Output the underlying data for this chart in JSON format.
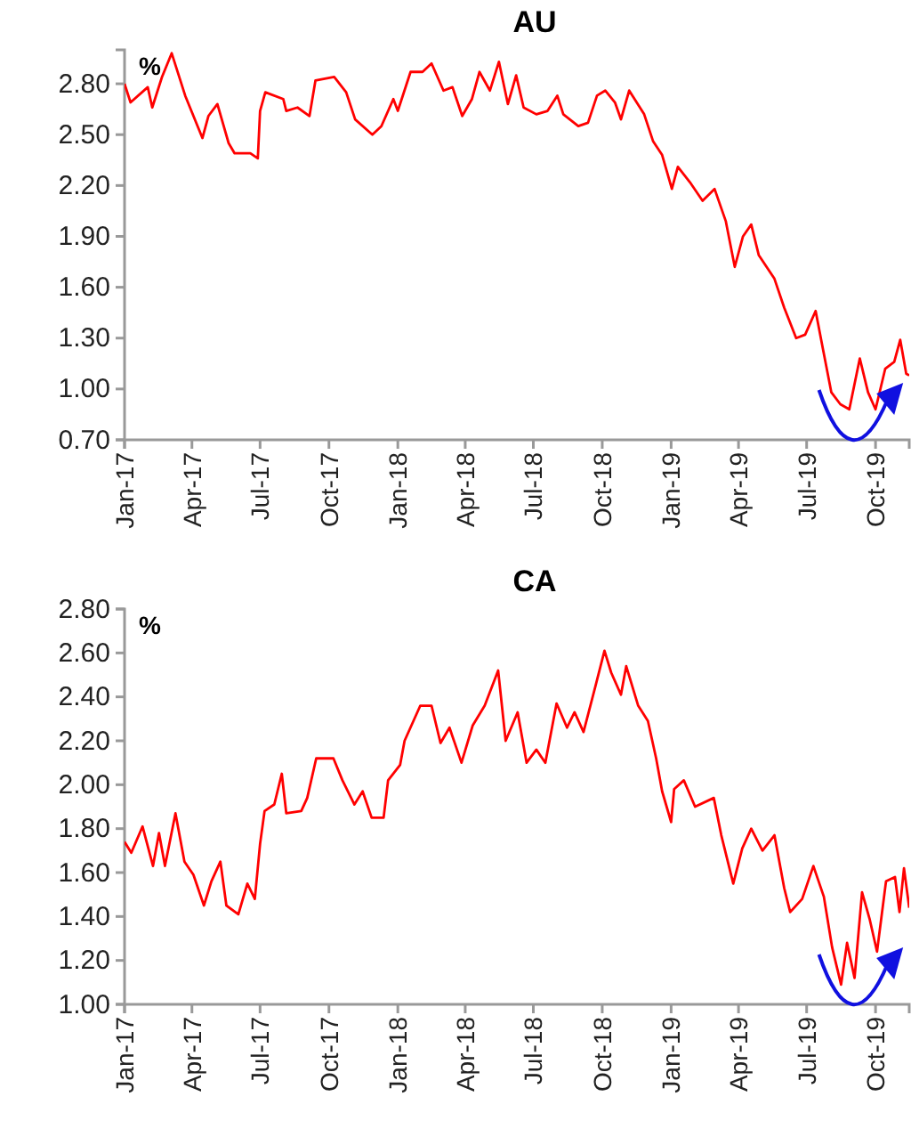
{
  "chart_data": [
    {
      "type": "line",
      "title": "AU",
      "ylabel": "%",
      "grid": false,
      "marker": "none",
      "line_style": "solid",
      "xlim": [
        "2017-01-01",
        "2019-11-15"
      ],
      "xticks": [
        {
          "value": "2017-01-01",
          "label": "Jan-17"
        },
        {
          "value": "2017-04-01",
          "label": "Apr-17"
        },
        {
          "value": "2017-07-01",
          "label": "Jul-17"
        },
        {
          "value": "2017-10-01",
          "label": "Oct-17"
        },
        {
          "value": "2018-01-01",
          "label": "Jan-18"
        },
        {
          "value": "2018-04-01",
          "label": "Apr-18"
        },
        {
          "value": "2018-07-01",
          "label": "Jul-18"
        },
        {
          "value": "2018-10-01",
          "label": "Oct-18"
        },
        {
          "value": "2019-01-01",
          "label": "Jan-19"
        },
        {
          "value": "2019-04-01",
          "label": "Apr-19"
        },
        {
          "value": "2019-07-01",
          "label": "Jul-19"
        },
        {
          "value": "2019-10-01",
          "label": "Oct-19"
        }
      ],
      "ylim": [
        0.7,
        3.0
      ],
      "yticks": [
        {
          "value": 0.7,
          "label": "0.70"
        },
        {
          "value": 1.0,
          "label": "1.00"
        },
        {
          "value": 1.3,
          "label": "1.30"
        },
        {
          "value": 1.6,
          "label": "1.60"
        },
        {
          "value": 1.9,
          "label": "1.90"
        },
        {
          "value": 2.2,
          "label": "2.20"
        },
        {
          "value": 2.5,
          "label": "2.50"
        },
        {
          "value": 2.8,
          "label": "2.80"
        }
      ],
      "x": [
        "2017-01-01",
        "2017-01-09",
        "2017-02-01",
        "2017-02-07",
        "2017-02-20",
        "2017-03-05",
        "2017-03-23",
        "2017-04-15",
        "2017-04-23",
        "2017-05-05",
        "2017-05-20",
        "2017-05-28",
        "2017-06-18",
        "2017-06-28",
        "2017-07-01",
        "2017-07-08",
        "2017-08-01",
        "2017-08-05",
        "2017-08-20",
        "2017-09-05",
        "2017-09-13",
        "2017-10-08",
        "2017-10-24",
        "2017-11-05",
        "2017-11-28",
        "2017-12-10",
        "2017-12-26",
        "2018-01-01",
        "2018-01-18",
        "2018-02-03",
        "2018-02-15",
        "2018-03-03",
        "2018-03-15",
        "2018-03-28",
        "2018-04-10",
        "2018-04-20",
        "2018-05-04",
        "2018-05-16",
        "2018-05-28",
        "2018-06-08",
        "2018-06-18",
        "2018-07-05",
        "2018-07-20",
        "2018-08-02",
        "2018-08-10",
        "2018-08-30",
        "2018-09-12",
        "2018-09-24",
        "2018-10-05",
        "2018-10-18",
        "2018-10-26",
        "2018-11-06",
        "2018-11-26",
        "2018-12-08",
        "2018-12-20",
        "2019-01-02",
        "2019-01-10",
        "2019-01-26",
        "2019-02-12",
        "2019-02-28",
        "2019-03-15",
        "2019-03-27",
        "2019-04-07",
        "2019-04-18",
        "2019-04-28",
        "2019-05-19",
        "2019-06-01",
        "2019-06-17",
        "2019-06-29",
        "2019-07-13",
        "2019-07-23",
        "2019-08-03",
        "2019-08-15",
        "2019-08-27",
        "2019-09-10",
        "2019-09-21",
        "2019-10-01",
        "2019-10-14",
        "2019-10-26",
        "2019-11-03",
        "2019-11-11",
        "2019-11-15"
      ],
      "series": [
        {
          "color": "#ff0000",
          "values": [
            2.8,
            2.69,
            2.78,
            2.66,
            2.84,
            2.98,
            2.73,
            2.48,
            2.61,
            2.68,
            2.45,
            2.39,
            2.39,
            2.36,
            2.64,
            2.75,
            2.71,
            2.64,
            2.66,
            2.61,
            2.82,
            2.84,
            2.75,
            2.59,
            2.5,
            2.55,
            2.71,
            2.64,
            2.87,
            2.87,
            2.92,
            2.76,
            2.78,
            2.61,
            2.71,
            2.87,
            2.76,
            2.93,
            2.68,
            2.85,
            2.66,
            2.62,
            2.64,
            2.73,
            2.62,
            2.55,
            2.57,
            2.73,
            2.76,
            2.69,
            2.59,
            2.76,
            2.62,
            2.46,
            2.38,
            2.18,
            2.31,
            2.22,
            2.11,
            2.18,
            1.99,
            1.72,
            1.9,
            1.97,
            1.79,
            1.65,
            1.48,
            1.3,
            1.32,
            1.46,
            1.23,
            0.98,
            0.91,
            0.88,
            1.18,
            0.98,
            0.88,
            1.12,
            1.16,
            1.29,
            1.09,
            1.08
          ]
        }
      ]
    },
    {
      "type": "line",
      "title": "CA",
      "ylabel": "%",
      "grid": false,
      "marker": "none",
      "line_style": "solid",
      "xlim": [
        "2017-01-01",
        "2019-11-15"
      ],
      "xticks": [
        {
          "value": "2017-01-01",
          "label": "Jan-17"
        },
        {
          "value": "2017-04-01",
          "label": "Apr-17"
        },
        {
          "value": "2017-07-01",
          "label": "Jul-17"
        },
        {
          "value": "2017-10-01",
          "label": "Oct-17"
        },
        {
          "value": "2018-01-01",
          "label": "Jan-18"
        },
        {
          "value": "2018-04-01",
          "label": "Apr-18"
        },
        {
          "value": "2018-07-01",
          "label": "Jul-18"
        },
        {
          "value": "2018-10-01",
          "label": "Oct-18"
        },
        {
          "value": "2019-01-01",
          "label": "Jan-19"
        },
        {
          "value": "2019-04-01",
          "label": "Apr-19"
        },
        {
          "value": "2019-07-01",
          "label": "Jul-19"
        },
        {
          "value": "2019-10-01",
          "label": "Oct-19"
        }
      ],
      "ylim": [
        1.0,
        2.8
      ],
      "yticks": [
        {
          "value": 1.0,
          "label": "1.00"
        },
        {
          "value": 1.2,
          "label": "1.20"
        },
        {
          "value": 1.4,
          "label": "1.40"
        },
        {
          "value": 1.6,
          "label": "1.60"
        },
        {
          "value": 1.8,
          "label": "1.80"
        },
        {
          "value": 2.0,
          "label": "2.00"
        },
        {
          "value": 2.2,
          "label": "2.20"
        },
        {
          "value": 2.4,
          "label": "2.40"
        },
        {
          "value": 2.6,
          "label": "2.60"
        },
        {
          "value": 2.8,
          "label": "2.80"
        }
      ],
      "x": [
        "2017-01-01",
        "2017-01-10",
        "2017-01-25",
        "2017-02-08",
        "2017-02-16",
        "2017-02-24",
        "2017-03-10",
        "2017-03-22",
        "2017-04-03",
        "2017-04-17",
        "2017-04-27",
        "2017-05-09",
        "2017-05-17",
        "2017-06-02",
        "2017-06-14",
        "2017-06-24",
        "2017-07-01",
        "2017-07-07",
        "2017-07-20",
        "2017-07-30",
        "2017-08-05",
        "2017-08-25",
        "2017-09-02",
        "2017-09-14",
        "2017-10-07",
        "2017-10-19",
        "2017-11-04",
        "2017-11-15",
        "2017-11-27",
        "2017-12-13",
        "2017-12-19",
        "2018-01-04",
        "2018-01-10",
        "2018-01-31",
        "2018-02-15",
        "2018-02-27",
        "2018-03-11",
        "2018-03-27",
        "2018-04-11",
        "2018-04-27",
        "2018-05-15",
        "2018-05-25",
        "2018-06-10",
        "2018-06-22",
        "2018-07-05",
        "2018-07-17",
        "2018-08-01",
        "2018-08-15",
        "2018-08-25",
        "2018-09-06",
        "2018-09-22",
        "2018-10-04",
        "2018-10-13",
        "2018-10-26",
        "2018-11-02",
        "2018-11-18",
        "2018-12-01",
        "2018-12-12",
        "2018-12-20",
        "2019-01-01",
        "2019-01-05",
        "2019-01-18",
        "2019-02-02",
        "2019-02-27",
        "2019-03-09",
        "2019-03-25",
        "2019-04-06",
        "2019-04-18",
        "2019-05-03",
        "2019-05-19",
        "2019-06-01",
        "2019-06-09",
        "2019-06-25",
        "2019-07-10",
        "2019-07-24",
        "2019-08-04",
        "2019-08-16",
        "2019-08-24",
        "2019-09-03",
        "2019-09-13",
        "2019-09-23",
        "2019-10-03",
        "2019-10-15",
        "2019-10-27",
        "2019-11-02",
        "2019-11-08",
        "2019-11-15"
      ],
      "series": [
        {
          "color": "#ff0000",
          "values": [
            1.74,
            1.69,
            1.81,
            1.63,
            1.78,
            1.63,
            1.87,
            1.65,
            1.59,
            1.45,
            1.56,
            1.65,
            1.45,
            1.41,
            1.55,
            1.48,
            1.73,
            1.88,
            1.91,
            2.05,
            1.87,
            1.88,
            1.94,
            2.12,
            2.12,
            2.02,
            1.91,
            1.97,
            1.85,
            1.85,
            2.02,
            2.09,
            2.2,
            2.36,
            2.36,
            2.19,
            2.26,
            2.1,
            2.27,
            2.36,
            2.52,
            2.2,
            2.33,
            2.1,
            2.16,
            2.1,
            2.37,
            2.26,
            2.33,
            2.24,
            2.45,
            2.61,
            2.51,
            2.41,
            2.54,
            2.36,
            2.29,
            2.12,
            1.97,
            1.83,
            1.98,
            2.02,
            1.9,
            1.94,
            1.77,
            1.55,
            1.71,
            1.8,
            1.7,
            1.77,
            1.53,
            1.42,
            1.48,
            1.63,
            1.49,
            1.26,
            1.09,
            1.28,
            1.12,
            1.51,
            1.39,
            1.24,
            1.56,
            1.58,
            1.42,
            1.62,
            1.44
          ]
        }
      ]
    }
  ]
}
